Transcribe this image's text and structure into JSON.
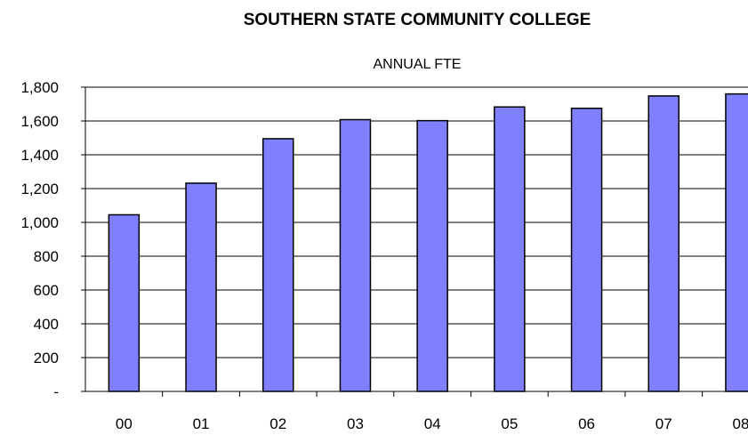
{
  "chart_data": {
    "type": "bar",
    "title": "SOUTHERN STATE COMMUNITY COLLEGE",
    "subtitle": "ANNUAL FTE",
    "xlabel": "",
    "ylabel": "",
    "categories": [
      "00",
      "01",
      "02",
      "03",
      "04",
      "05",
      "06",
      "07",
      "08"
    ],
    "series": [
      {
        "values": [
          1045,
          1232,
          1495,
          1608,
          1602,
          1683,
          1675,
          1748,
          1760
        ]
      }
    ],
    "ylim": [
      0,
      1800
    ],
    "yticks": [
      0,
      200,
      400,
      600,
      800,
      1000,
      1200,
      1400,
      1600,
      1800
    ],
    "ytick_labels": [
      "-",
      "200",
      "400",
      "600",
      "800",
      "1,000",
      "1,200",
      "1,400",
      "1,600",
      "1,800"
    ],
    "grid": true,
    "legend": "none",
    "colors": {
      "bar_fill": "#8080ff",
      "bar_stroke": "#000000",
      "grid": "#000000"
    }
  }
}
